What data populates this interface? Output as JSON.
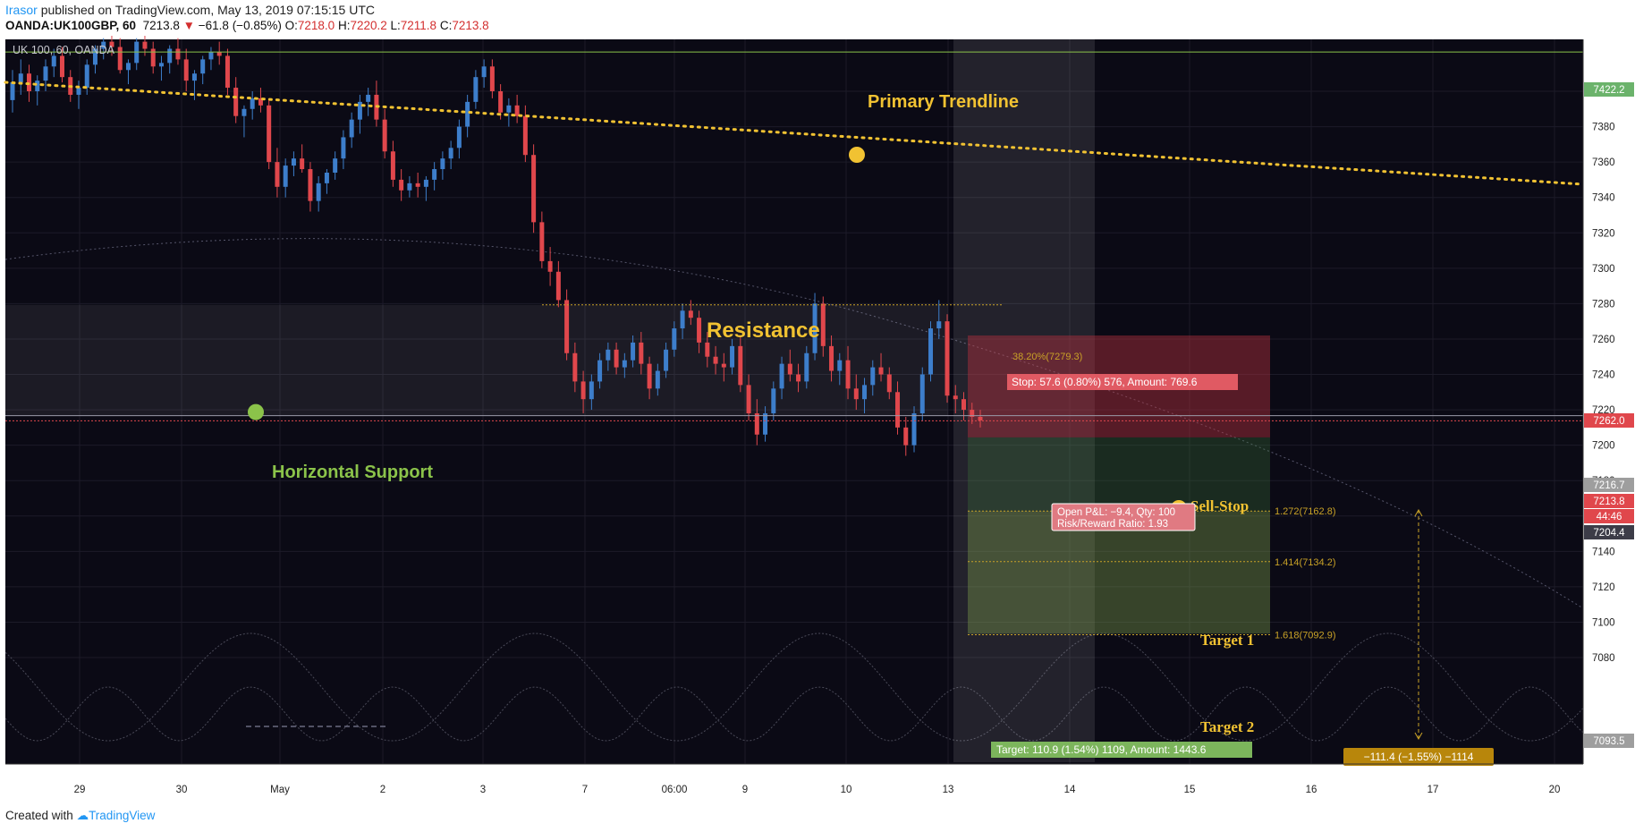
{
  "header": {
    "author": "Irasor",
    "published_text": "published on TradingView.com, May 13, 2019 07:15:15 UTC",
    "symbol": "OANDA:UK100GBP, 60",
    "last": "7213.8",
    "change": "−61.8 (−0.85%)",
    "open_label": "O:",
    "open": "7218.0",
    "high_label": "H:",
    "high": "7220.2",
    "low_label": "L:",
    "low": "7211.8",
    "close_label": "C:",
    "close": "7213.8"
  },
  "footer": {
    "created_with": "Created with",
    "brand": "TradingView"
  },
  "colors": {
    "background": "#0b0a15",
    "up": "#3d7ecb",
    "down": "#e0474c",
    "trendline": "#f1c232",
    "support_dot": "#8bc34a",
    "stop_zone": "#7a2a33",
    "target_zone": "#2f4a2e"
  },
  "chart_data": {
    "type": "candlestick",
    "instrument_label": "UK 100, 60, OANDA",
    "ylim": [
      7070,
      7430
    ],
    "y_ticks": [
      7080,
      7100,
      7120,
      7140,
      7160,
      7180,
      7200,
      7220,
      7240,
      7260,
      7280,
      7300,
      7320,
      7340,
      7360,
      7380,
      7400
    ],
    "x_ticks": [
      "29",
      "30",
      "May",
      "2",
      "3",
      "7",
      "06:00",
      "9",
      "10",
      "13",
      "14",
      "15",
      "16",
      "17",
      "20"
    ],
    "price_labels": [
      {
        "value": "7422.2",
        "kind": "green"
      },
      {
        "value": "7262.0",
        "kind": "red"
      },
      {
        "value": "7216.7",
        "kind": "gray"
      },
      {
        "value": "7213.8",
        "kind": "red"
      },
      {
        "value": "44:46",
        "kind": "red"
      },
      {
        "value": "7204.4",
        "kind": "dark"
      },
      {
        "value": "7093.5",
        "kind": "gray"
      }
    ],
    "levels": {
      "top_line": 7422.2,
      "resistance": 7279.3,
      "support": 7216.7,
      "last_price": 7213.8
    },
    "annotations": {
      "primary_trendline": "Primary Trendline",
      "resistance": "Resistance",
      "horizontal_support": "Horizontal Support",
      "sell_stop": "Sell-Stop",
      "target_1": "Target 1",
      "target_2": "Target 2",
      "fib_38": "38.20%(7279.3)",
      "fib_1272": "1.272(7162.8)",
      "fib_1414": "1.414(7134.2)",
      "fib_1618": "1.618(7092.9)",
      "stop_label": "Stop: 57.6 (0.80%) 576, Amount: 769.6",
      "target_label": "Target: 110.9 (1.54%) 1109, Amount: 1443.6",
      "pnl_label": "Open P&L: −9.4, Qty: 100",
      "rr_label": "Risk/Reward Ratio: 1.93",
      "measure_label": "−111.4 (−1.55%) −1114"
    },
    "position": {
      "entry": 7204.4,
      "stop": 7262.0,
      "target": 7093.5,
      "fib_1272": 7162.8,
      "fib_1414": 7134.2,
      "fib_1618": 7092.9
    },
    "candles_ohlc": [
      [
        7395,
        7412,
        7388,
        7405
      ],
      [
        7405,
        7418,
        7398,
        7410
      ],
      [
        7410,
        7415,
        7394,
        7400
      ],
      [
        7400,
        7409,
        7392,
        7406
      ],
      [
        7406,
        7418,
        7400,
        7414
      ],
      [
        7414,
        7424,
        7408,
        7420
      ],
      [
        7420,
        7425,
        7405,
        7408
      ],
      [
        7408,
        7412,
        7394,
        7398
      ],
      [
        7398,
        7406,
        7390,
        7402
      ],
      [
        7402,
        7418,
        7398,
        7415
      ],
      [
        7415,
        7426,
        7410,
        7424
      ],
      [
        7424,
        7430,
        7418,
        7428
      ],
      [
        7428,
        7434,
        7420,
        7425
      ],
      [
        7425,
        7430,
        7410,
        7412
      ],
      [
        7412,
        7418,
        7404,
        7416
      ],
      [
        7416,
        7430,
        7412,
        7428
      ],
      [
        7428,
        7432,
        7420,
        7424
      ],
      [
        7424,
        7428,
        7410,
        7414
      ],
      [
        7414,
        7420,
        7406,
        7416
      ],
      [
        7416,
        7426,
        7410,
        7424
      ],
      [
        7424,
        7430,
        7415,
        7418
      ],
      [
        7418,
        7424,
        7400,
        7406
      ],
      [
        7406,
        7412,
        7395,
        7410
      ],
      [
        7410,
        7420,
        7404,
        7418
      ],
      [
        7418,
        7425,
        7412,
        7422
      ],
      [
        7422,
        7428,
        7415,
        7420
      ],
      [
        7420,
        7424,
        7398,
        7402
      ],
      [
        7402,
        7408,
        7382,
        7386
      ],
      [
        7386,
        7392,
        7374,
        7390
      ],
      [
        7390,
        7400,
        7384,
        7396
      ],
      [
        7396,
        7402,
        7388,
        7392
      ],
      [
        7392,
        7396,
        7356,
        7360
      ],
      [
        7360,
        7368,
        7340,
        7346
      ],
      [
        7346,
        7362,
        7340,
        7358
      ],
      [
        7358,
        7366,
        7352,
        7362
      ],
      [
        7362,
        7370,
        7354,
        7356
      ],
      [
        7356,
        7360,
        7332,
        7338
      ],
      [
        7338,
        7352,
        7332,
        7348
      ],
      [
        7348,
        7356,
        7342,
        7354
      ],
      [
        7354,
        7366,
        7350,
        7362
      ],
      [
        7362,
        7378,
        7356,
        7374
      ],
      [
        7374,
        7388,
        7368,
        7384
      ],
      [
        7384,
        7398,
        7376,
        7394
      ],
      [
        7394,
        7402,
        7386,
        7398
      ],
      [
        7398,
        7406,
        7380,
        7384
      ],
      [
        7384,
        7390,
        7362,
        7366
      ],
      [
        7366,
        7372,
        7346,
        7350
      ],
      [
        7350,
        7356,
        7338,
        7344
      ],
      [
        7344,
        7352,
        7340,
        7348
      ],
      [
        7348,
        7354,
        7340,
        7346
      ],
      [
        7346,
        7352,
        7338,
        7350
      ],
      [
        7350,
        7360,
        7344,
        7356
      ],
      [
        7356,
        7366,
        7350,
        7362
      ],
      [
        7362,
        7372,
        7356,
        7368
      ],
      [
        7368,
        7384,
        7362,
        7380
      ],
      [
        7380,
        7398,
        7374,
        7394
      ],
      [
        7394,
        7412,
        7390,
        7408
      ],
      [
        7408,
        7418,
        7402,
        7414
      ],
      [
        7414,
        7418,
        7396,
        7400
      ],
      [
        7400,
        7404,
        7384,
        7388
      ],
      [
        7388,
        7396,
        7380,
        7392
      ],
      [
        7392,
        7398,
        7382,
        7386
      ],
      [
        7386,
        7392,
        7360,
        7364
      ],
      [
        7364,
        7370,
        7320,
        7326
      ],
      [
        7326,
        7332,
        7300,
        7304
      ],
      [
        7304,
        7312,
        7290,
        7298
      ],
      [
        7298,
        7304,
        7278,
        7282
      ],
      [
        7282,
        7288,
        7248,
        7252
      ],
      [
        7252,
        7258,
        7230,
        7236
      ],
      [
        7236,
        7242,
        7218,
        7226
      ],
      [
        7226,
        7240,
        7220,
        7236
      ],
      [
        7236,
        7252,
        7232,
        7248
      ],
      [
        7248,
        7258,
        7242,
        7254
      ],
      [
        7254,
        7258,
        7240,
        7244
      ],
      [
        7244,
        7252,
        7238,
        7248
      ],
      [
        7248,
        7262,
        7244,
        7258
      ],
      [
        7258,
        7264,
        7240,
        7246
      ],
      [
        7246,
        7250,
        7226,
        7232
      ],
      [
        7232,
        7246,
        7228,
        7242
      ],
      [
        7242,
        7258,
        7238,
        7254
      ],
      [
        7254,
        7270,
        7250,
        7266
      ],
      [
        7266,
        7280,
        7260,
        7276
      ],
      [
        7276,
        7282,
        7268,
        7272
      ],
      [
        7272,
        7276,
        7252,
        7258
      ],
      [
        7258,
        7264,
        7244,
        7250
      ],
      [
        7250,
        7256,
        7240,
        7246
      ],
      [
        7246,
        7252,
        7236,
        7244
      ],
      [
        7244,
        7260,
        7240,
        7256
      ],
      [
        7256,
        7262,
        7230,
        7234
      ],
      [
        7234,
        7240,
        7214,
        7218
      ],
      [
        7218,
        7226,
        7200,
        7206
      ],
      [
        7206,
        7222,
        7202,
        7218
      ],
      [
        7218,
        7236,
        7214,
        7232
      ],
      [
        7232,
        7250,
        7226,
        7246
      ],
      [
        7246,
        7254,
        7236,
        7240
      ],
      [
        7240,
        7246,
        7230,
        7236
      ],
      [
        7236,
        7256,
        7232,
        7252
      ],
      [
        7252,
        7286,
        7248,
        7280
      ],
      [
        7280,
        7284,
        7250,
        7256
      ],
      [
        7256,
        7262,
        7236,
        7242
      ],
      [
        7242,
        7252,
        7234,
        7248
      ],
      [
        7248,
        7256,
        7226,
        7232
      ],
      [
        7232,
        7240,
        7220,
        7226
      ],
      [
        7226,
        7238,
        7218,
        7234
      ],
      [
        7234,
        7248,
        7228,
        7244
      ],
      [
        7244,
        7252,
        7236,
        7240
      ],
      [
        7240,
        7244,
        7226,
        7230
      ],
      [
        7230,
        7236,
        7206,
        7210
      ],
      [
        7210,
        7216,
        7194,
        7200
      ],
      [
        7200,
        7222,
        7196,
        7218
      ],
      [
        7218,
        7244,
        7214,
        7240
      ],
      [
        7240,
        7270,
        7236,
        7266
      ],
      [
        7266,
        7282,
        7260,
        7270
      ],
      [
        7270,
        7274,
        7224,
        7228
      ],
      [
        7228,
        7234,
        7218,
        7226
      ],
      [
        7226,
        7230,
        7214,
        7220
      ],
      [
        7220,
        7224,
        7212,
        7216
      ],
      [
        7216,
        7220,
        7210,
        7214
      ]
    ]
  }
}
